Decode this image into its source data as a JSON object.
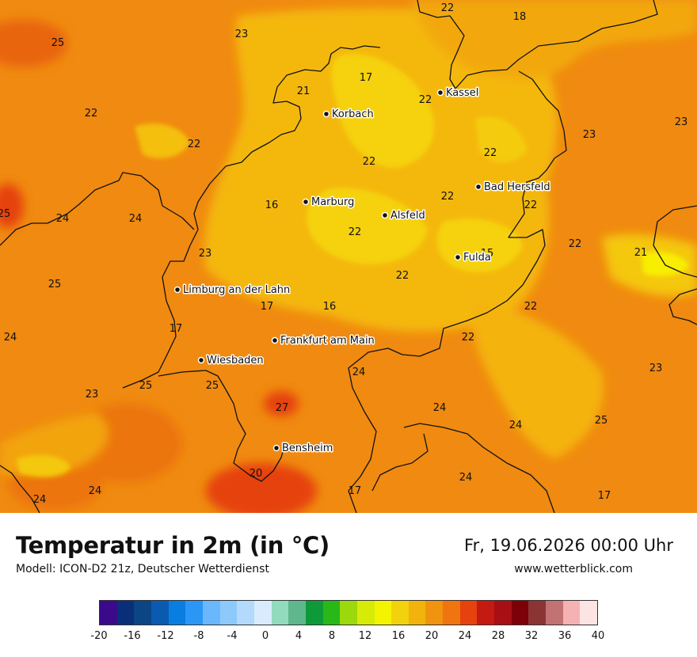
{
  "map": {
    "cities": [
      {
        "name": "Kassel"
      },
      {
        "name": "Korbach"
      },
      {
        "name": "Bad Hersfeld"
      },
      {
        "name": "Marburg"
      },
      {
        "name": "Alsfeld"
      },
      {
        "name": "Fulda"
      },
      {
        "name": "Limburg an der Lahn"
      },
      {
        "name": "Frankfurt am Main"
      },
      {
        "name": "Wiesbaden"
      },
      {
        "name": "Bensheim"
      }
    ],
    "values": [
      "22",
      "18",
      "25",
      "23",
      "17",
      "21",
      "22",
      "22",
      "23",
      "22",
      "23",
      "22",
      "22",
      "22",
      "22",
      "25",
      "24",
      "24",
      "16",
      "22",
      "15",
      "22",
      "21",
      "23",
      "22",
      "25",
      "17",
      "16",
      "22",
      "24",
      "17",
      "22",
      "24",
      "23",
      "23",
      "25",
      "25",
      "27",
      "24",
      "24",
      "25",
      "20",
      "24",
      "17",
      "24",
      "24",
      "17"
    ]
  },
  "footer": {
    "title": "Temperatur in 2m (in °C)",
    "model": "Modell: ICON-D2 21z, Deutscher Wetterdienst",
    "datetime": "Fr, 19.06.2026 00:00 Uhr",
    "site": "www.wetterblick.com"
  },
  "legend": {
    "colors": [
      "#3a0a8a",
      "#0a2f7a",
      "#0b4584",
      "#0a5bb0",
      "#0a7de0",
      "#2a96f5",
      "#6ab7fb",
      "#8ec9fc",
      "#b3dafd",
      "#d9ecfe",
      "#93dbbd",
      "#5fb78e",
      "#0f9a3a",
      "#28b818",
      "#9bd80c",
      "#d6eb08",
      "#f4f400",
      "#f2d20c",
      "#f2b30c",
      "#f09410",
      "#f07410",
      "#e6420e",
      "#c41a12",
      "#a80f14",
      "#7c0208",
      "#8a3434",
      "#c27272",
      "#f4b2b2",
      "#fde4e4"
    ],
    "ticks": [
      "-20",
      "-16",
      "-12",
      "-8",
      "-4",
      "0",
      "4",
      "8",
      "12",
      "16",
      "20",
      "24",
      "28",
      "32",
      "36",
      "40"
    ]
  }
}
